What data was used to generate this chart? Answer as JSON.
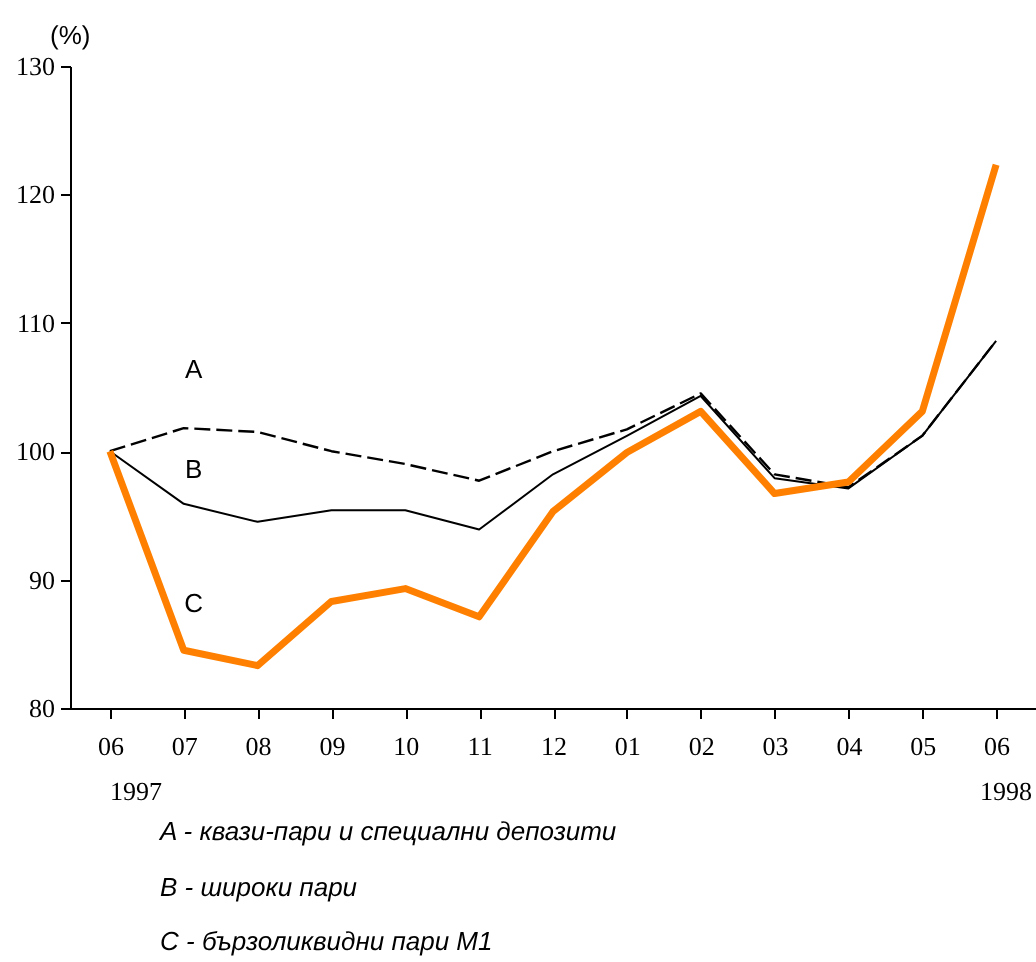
{
  "chart_data": {
    "type": "line",
    "categories": [
      "06",
      "07",
      "08",
      "09",
      "10",
      "11",
      "12",
      "01",
      "02",
      "03",
      "04",
      "05",
      "06"
    ],
    "ylim": [
      80,
      130
    ],
    "yticks": [
      80,
      90,
      100,
      110,
      120,
      130
    ],
    "ylabel": "(%)",
    "series": [
      {
        "name": "A",
        "color": "#000000",
        "line_style": "dashed",
        "values": [
          100,
          101.8,
          101.5,
          100,
          99,
          97.7,
          100,
          101.7,
          104.5,
          98.2,
          97.2,
          101.2,
          108.6
        ]
      },
      {
        "name": "B",
        "color": "#000000",
        "line_style": "solid",
        "values": [
          100,
          95.9,
          94.5,
          95.4,
          95.4,
          93.9,
          98.2,
          101.2,
          104.3,
          97.9,
          97.1,
          101.2,
          108.6
        ]
      },
      {
        "name": "C",
        "color": "#ff8000",
        "line_style": "solid",
        "values": [
          100,
          84.5,
          83.3,
          88.3,
          89.3,
          87.1,
          95.3,
          99.9,
          103.1,
          96.7,
          97.6,
          103.1,
          122.3
        ]
      }
    ],
    "annotations": [
      "1997",
      "1998",
      "A  - квази-пари и специални депозити",
      "B  - широки пари",
      "C  - бързоликвидни пари М1"
    ]
  }
}
